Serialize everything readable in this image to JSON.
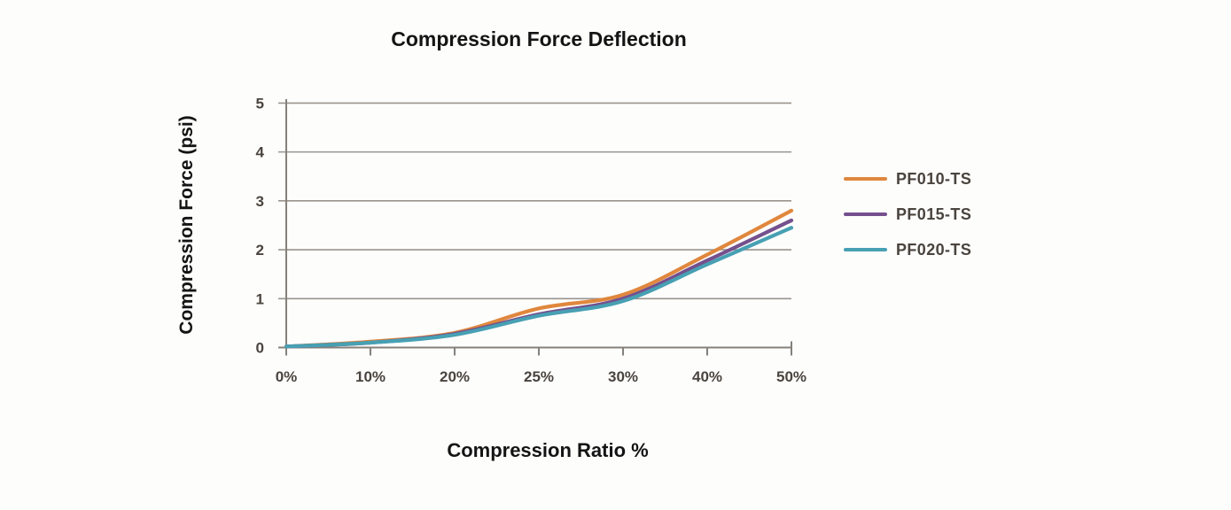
{
  "chart_data": {
    "type": "line",
    "title": "Compression Force Deflection",
    "xlabel": "Compression Ratio %",
    "ylabel": "Compression Force (psi)",
    "categories": [
      "0%",
      "10%",
      "20%",
      "25%",
      "30%",
      "40%",
      "50%"
    ],
    "y_ticks": [
      0,
      1,
      2,
      3,
      4,
      5
    ],
    "ylim": [
      0,
      5
    ],
    "grid": true,
    "legend_position": "right",
    "series": [
      {
        "name": "PF010-TS",
        "color": "#e0873d",
        "values": [
          0.02,
          0.12,
          0.3,
          0.8,
          1.08,
          1.9,
          2.8
        ]
      },
      {
        "name": "PF015-TS",
        "color": "#74508d",
        "values": [
          0.02,
          0.1,
          0.28,
          0.68,
          1.0,
          1.78,
          2.6
        ]
      },
      {
        "name": "PF020-TS",
        "color": "#47a0b3",
        "values": [
          0.02,
          0.1,
          0.26,
          0.65,
          0.95,
          1.7,
          2.45
        ]
      }
    ],
    "colors": {
      "grid": "#9a948d",
      "axis": "#85807a",
      "tick_label": "#4a443e",
      "title_text": "#141414",
      "legend_text": "#4a443e"
    }
  }
}
